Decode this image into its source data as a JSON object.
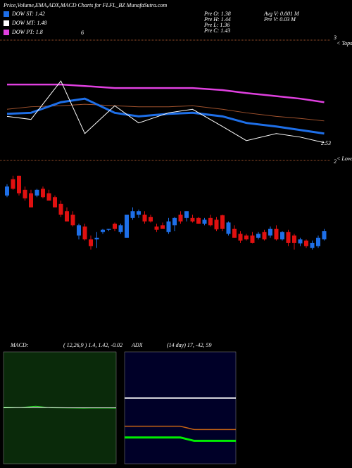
{
  "header": {
    "title": "Price,Volume,EMA,ADX,MACD Charts for FLFL_BZ MunafaSutra.com",
    "dow": [
      {
        "text": "DOW ST: 1.42",
        "color": "#1e6fe8"
      },
      {
        "text": "DOW MT: 1.48",
        "color": "#ffffff"
      },
      {
        "text": "DOW PT: 1.8",
        "color": "#e040e0"
      }
    ],
    "dow_note": "6",
    "prev": [
      "Pre  O: 1.38",
      "Pre  H: 1.44",
      "Pre  L: 1.36",
      "Pre  C: 1.43"
    ],
    "volume": [
      "Avg V: 0.001 M",
      "Pre  V: 0.03 M"
    ]
  },
  "chart_data": [
    {
      "type": "line",
      "x": [
        0,
        4,
        9,
        13,
        18,
        22,
        27,
        31,
        36,
        40,
        45,
        49,
        53
      ],
      "ylim": [
        1.2,
        2.8
      ],
      "tops_label": "< Tops",
      "tops_value": "3",
      "lows_label": "< Lows",
      "lows_value": "2",
      "last_label": "2.53",
      "series": [
        {
          "color": "#e040e0",
          "width": 2.5,
          "values": [
            2.66,
            2.66,
            2.66,
            2.63,
            2.59,
            2.59,
            2.59,
            2.59,
            2.55,
            2.49,
            2.43,
            2.38,
            2.31
          ]
        },
        {
          "color": "#a0522d",
          "width": 1,
          "values": [
            2.17,
            2.22,
            2.24,
            2.27,
            2.24,
            2.22,
            2.22,
            2.24,
            2.17,
            2.1,
            2.03,
            1.99,
            1.94
          ]
        },
        {
          "color": "#1e6fe8",
          "width": 3,
          "values": [
            2.08,
            2.1,
            2.31,
            2.38,
            2.1,
            2.03,
            2.08,
            2.1,
            2.03,
            1.9,
            1.83,
            1.76,
            1.69
          ]
        },
        {
          "color": "#ffffff",
          "width": 1,
          "values": [
            2.03,
            1.97,
            2.73,
            1.69,
            2.24,
            1.9,
            2.1,
            2.17,
            1.83,
            1.55,
            1.69,
            1.62,
            1.51
          ]
        }
      ]
    },
    {
      "type": "candlestick",
      "ylim": [
        1.2,
        2.7
      ],
      "up_color": "#1e6fe8",
      "down_color": "#e01010",
      "candles": [
        [
          2.29,
          2.49,
          2.26,
          2.45
        ],
        [
          2.58,
          2.64,
          2.39,
          2.41
        ],
        [
          2.64,
          2.64,
          2.29,
          2.33
        ],
        [
          2.39,
          2.45,
          2.2,
          2.24
        ],
        [
          2.33,
          2.39,
          2.08,
          2.08
        ],
        [
          2.29,
          2.41,
          2.26,
          2.39
        ],
        [
          2.41,
          2.45,
          2.24,
          2.26
        ],
        [
          2.33,
          2.39,
          2.2,
          2.2
        ],
        [
          2.26,
          2.29,
          2.08,
          2.08
        ],
        [
          2.14,
          2.2,
          1.91,
          1.95
        ],
        [
          2.01,
          2.08,
          1.83,
          1.83
        ],
        [
          1.95,
          2.01,
          1.74,
          1.76
        ],
        [
          1.58,
          1.79,
          1.51,
          1.76
        ],
        [
          1.74,
          1.79,
          1.49,
          1.51
        ],
        [
          1.51,
          1.58,
          1.33,
          1.39
        ],
        [
          1.51,
          1.64,
          1.36,
          1.54
        ],
        [
          1.64,
          1.7,
          1.61,
          1.68
        ],
        [
          1.68,
          1.7,
          1.66,
          1.7
        ],
        [
          1.79,
          1.81,
          1.66,
          1.7
        ],
        [
          1.64,
          1.79,
          1.61,
          1.76
        ],
        [
          1.54,
          1.95,
          1.54,
          1.95
        ],
        [
          1.89,
          2.08,
          1.86,
          2.01
        ],
        [
          1.95,
          2.04,
          1.89,
          2.01
        ],
        [
          1.95,
          2.01,
          1.79,
          1.83
        ],
        [
          1.91,
          1.95,
          1.81,
          1.83
        ],
        [
          1.74,
          1.79,
          1.64,
          1.68
        ],
        [
          1.76,
          1.81,
          1.7,
          1.7
        ],
        [
          1.64,
          1.89,
          1.61,
          1.83
        ],
        [
          1.76,
          1.91,
          1.66,
          1.89
        ],
        [
          1.95,
          2.01,
          1.79,
          1.83
        ],
        [
          1.89,
          2.01,
          1.83,
          2.01
        ],
        [
          1.89,
          1.95,
          1.81,
          1.83
        ],
        [
          1.89,
          1.91,
          1.79,
          1.79
        ],
        [
          1.79,
          1.89,
          1.76,
          1.86
        ],
        [
          1.89,
          1.95,
          1.74,
          1.76
        ],
        [
          1.86,
          1.91,
          1.66,
          1.69
        ],
        [
          1.94,
          1.95,
          1.66,
          1.7
        ],
        [
          1.61,
          1.83,
          1.58,
          1.81
        ],
        [
          1.7,
          1.76,
          1.54,
          1.54
        ],
        [
          1.61,
          1.66,
          1.45,
          1.49
        ],
        [
          1.58,
          1.61,
          1.49,
          1.51
        ],
        [
          1.58,
          1.64,
          1.44,
          1.45
        ],
        [
          1.54,
          1.64,
          1.51,
          1.61
        ],
        [
          1.64,
          1.68,
          1.49,
          1.51
        ],
        [
          1.58,
          1.74,
          1.54,
          1.7
        ],
        [
          1.7,
          1.76,
          1.49,
          1.51
        ],
        [
          1.51,
          1.66,
          1.49,
          1.64
        ],
        [
          1.64,
          1.68,
          1.39,
          1.45
        ],
        [
          1.58,
          1.61,
          1.33,
          1.45
        ],
        [
          1.44,
          1.54,
          1.39,
          1.51
        ],
        [
          1.49,
          1.51,
          1.36,
          1.39
        ],
        [
          1.36,
          1.49,
          1.33,
          1.45
        ],
        [
          1.39,
          1.58,
          1.36,
          1.54
        ],
        [
          1.51,
          1.7,
          1.49,
          1.66
        ]
      ]
    },
    {
      "type": "line",
      "title": "MACD:",
      "subtitle": "( 12,26,9 ) 1.4, 1.42, -0.02",
      "background": "#0a2a0a",
      "x": [
        0,
        1,
        2,
        3,
        4,
        5,
        6,
        7
      ],
      "ylim": [
        -1.5,
        4.3
      ],
      "series": [
        {
          "color": "#22dd22",
          "width": 1,
          "values": [
            1.45,
            1.43,
            1.5,
            1.42,
            1.41,
            1.4,
            1.41,
            1.4
          ]
        },
        {
          "color": "#ffffff",
          "width": 1,
          "values": [
            1.42,
            1.43,
            1.44,
            1.43,
            1.42,
            1.42,
            1.42,
            1.42
          ]
        }
      ]
    },
    {
      "type": "line",
      "title": "ADX",
      "subtitle": "(14 day) 17, -42, 59",
      "background": "#000028",
      "x": [
        0,
        1,
        2,
        3,
        4,
        5,
        6,
        7,
        8
      ],
      "ylim": [
        0,
        100
      ],
      "series": [
        {
          "color": "#ffffff",
          "width": 2,
          "values": [
            59,
            59,
            59,
            59,
            59,
            59,
            59,
            59,
            59
          ]
        },
        {
          "color": "#c86414",
          "width": 1.5,
          "values": [
            34,
            34,
            34,
            34,
            34,
            31,
            31,
            31,
            31
          ]
        },
        {
          "color": "#00ee00",
          "width": 3,
          "values": [
            24,
            24,
            24,
            24,
            24,
            21,
            21,
            21,
            21
          ]
        }
      ]
    }
  ]
}
